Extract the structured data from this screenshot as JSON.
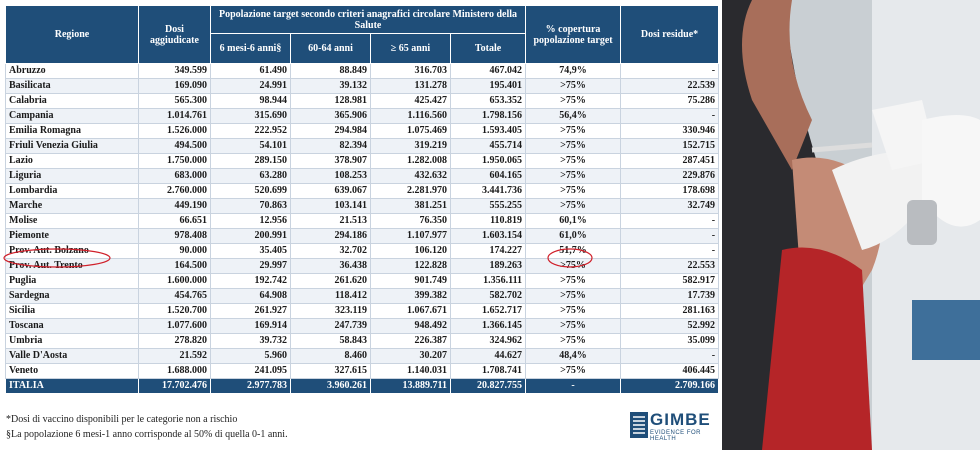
{
  "table": {
    "headers": {
      "region": "Regione",
      "doses": "Dosi aggiudicate",
      "population": "Popolazione target secondo criteri anagrafici circolare Ministero della Salute",
      "age_groups": [
        "6 mesi-6 anni§",
        "60-64 anni",
        "≥ 65 anni",
        "Totale"
      ],
      "coverage": "% copertura popolazione target",
      "residual": "Dosi residue*"
    },
    "rows": [
      [
        "Abruzzo",
        "349.599",
        "61.490",
        "88.849",
        "316.703",
        "467.042",
        "74,9%",
        "-"
      ],
      [
        "Basilicata",
        "169.090",
        "24.991",
        "39.132",
        "131.278",
        "195.401",
        ">75%",
        "22.539"
      ],
      [
        "Calabria",
        "565.300",
        "98.944",
        "128.981",
        "425.427",
        "653.352",
        ">75%",
        "75.286"
      ],
      [
        "Campania",
        "1.014.761",
        "315.690",
        "365.906",
        "1.116.560",
        "1.798.156",
        "56,4%",
        "-"
      ],
      [
        "Emilia Romagna",
        "1.526.000",
        "222.952",
        "294.984",
        "1.075.469",
        "1.593.405",
        ">75%",
        "330.946"
      ],
      [
        "Friuli Venezia Giulia",
        "494.500",
        "54.101",
        "82.394",
        "319.219",
        "455.714",
        ">75%",
        "152.715"
      ],
      [
        "Lazio",
        "1.750.000",
        "289.150",
        "378.907",
        "1.282.008",
        "1.950.065",
        ">75%",
        "287.451"
      ],
      [
        "Liguria",
        "683.000",
        "63.280",
        "108.253",
        "432.632",
        "604.165",
        ">75%",
        "229.876"
      ],
      [
        "Lombardia",
        "2.760.000",
        "520.699",
        "639.067",
        "2.281.970",
        "3.441.736",
        ">75%",
        "178.698"
      ],
      [
        "Marche",
        "449.190",
        "70.863",
        "103.141",
        "381.251",
        "555.255",
        ">75%",
        "32.749"
      ],
      [
        "Molise",
        "66.651",
        "12.956",
        "21.513",
        "76.350",
        "110.819",
        "60,1%",
        "-"
      ],
      [
        "Piemonte",
        "978.408",
        "200.991",
        "294.186",
        "1.107.977",
        "1.603.154",
        "61,0%",
        "-"
      ],
      [
        "Prov. Aut. Bolzano",
        "90.000",
        "35.405",
        "32.702",
        "106.120",
        "174.227",
        "51,7%",
        "-"
      ],
      [
        "Prov. Aut. Trento",
        "164.500",
        "29.997",
        "36.438",
        "122.828",
        "189.263",
        ">75%",
        "22.553"
      ],
      [
        "Puglia",
        "1.600.000",
        "192.742",
        "261.620",
        "901.749",
        "1.356.111",
        ">75%",
        "582.917"
      ],
      [
        "Sardegna",
        "454.765",
        "64.908",
        "118.412",
        "399.382",
        "582.702",
        ">75%",
        "17.739"
      ],
      [
        "Sicilia",
        "1.520.700",
        "261.927",
        "323.119",
        "1.067.671",
        "1.652.717",
        ">75%",
        "281.163"
      ],
      [
        "Toscana",
        "1.077.600",
        "169.914",
        "247.739",
        "948.492",
        "1.366.145",
        ">75%",
        "52.992"
      ],
      [
        "Umbria",
        "278.820",
        "39.732",
        "58.843",
        "226.387",
        "324.962",
        ">75%",
        "35.099"
      ],
      [
        "Valle D'Aosta",
        "21.592",
        "5.960",
        "8.460",
        "30.207",
        "44.627",
        "48,4%",
        "-"
      ],
      [
        "Veneto",
        "1.688.000",
        "241.095",
        "327.615",
        "1.140.031",
        "1.708.741",
        ">75%",
        "406.445"
      ]
    ],
    "total": [
      "ITALIA",
      "17.702.476",
      "2.977.783",
      "3.960.261",
      "13.889.711",
      "20.827.755",
      "-",
      "2.709.166"
    ]
  },
  "footnotes": [
    "*Dosi di vaccino disponibili per le categorie non a rischio",
    "§La popolazione 6 mesi-1 anno corrisponde al 50% di quella 0-1 anni."
  ],
  "logo": {
    "name": "GIMBE",
    "tagline": "EVIDENCE FOR HEALTH"
  }
}
